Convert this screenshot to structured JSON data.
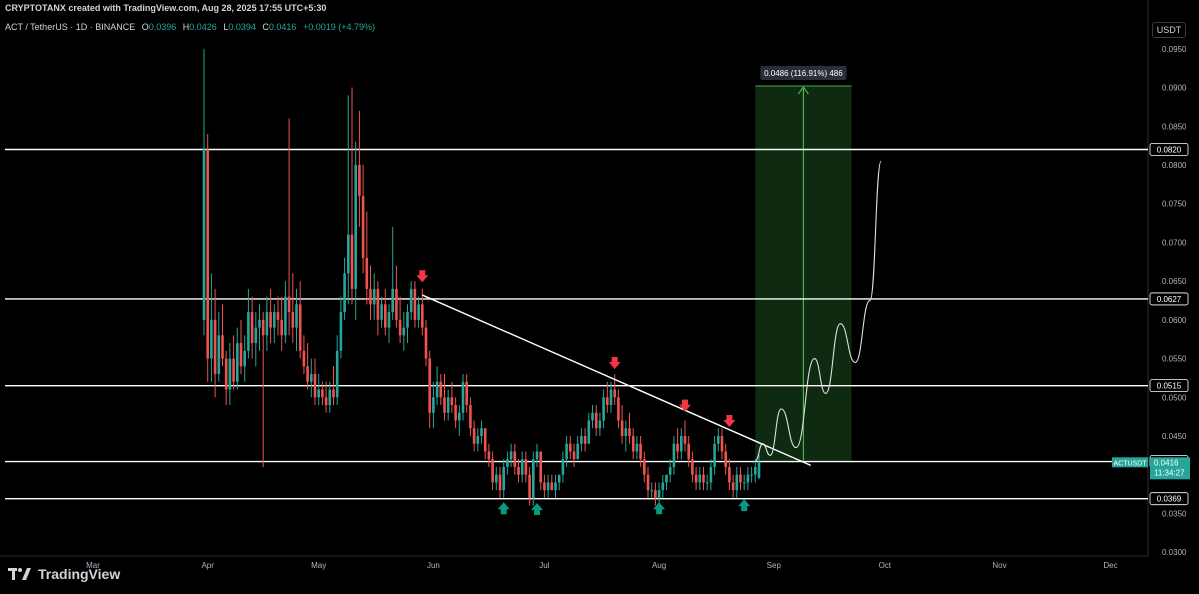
{
  "header": {
    "attribution": "CRYPTOTANX created with TradingView.com, Aug 28, 2025 17:55 UTC+5:30"
  },
  "legend": {
    "symbol": "ACT / TetherUS · 1D · BINANCE",
    "o_label": "O",
    "o_value": "0.0396",
    "h_label": "H",
    "h_value": "0.0426",
    "l_label": "L",
    "l_value": "0.0394",
    "c_label": "C",
    "c_value": "0.0416",
    "change": "+0.0019 (+4.79%)"
  },
  "unit_label": "USDT",
  "footer": {
    "brand": "TradingView",
    "logo_icon": "tradingview-logo-icon"
  },
  "colors": {
    "up": "#26a69a",
    "down": "#ef5350",
    "target_zone": "#0e2a10",
    "target_line": "#4caf50",
    "background": "#000000"
  },
  "chart_data": {
    "type": "candlestick",
    "symbol": "ACTUSDT",
    "y_scale": "linear",
    "ylim": [
      0.0295,
      0.0995
    ],
    "x_months": [
      "Mar",
      "Apr",
      "May",
      "Jun",
      "Jul",
      "Aug",
      "Sep",
      "Oct",
      "Nov",
      "Dec"
    ],
    "y_ticks": [
      "0.0950",
      "0.0900",
      "0.0850",
      "0.0800",
      "0.0750",
      "0.0700",
      "0.0650",
      "0.0600",
      "0.0550",
      "0.0500",
      "0.0450",
      "0.0400",
      "0.0350",
      "0.0300"
    ],
    "horizontal_levels": [
      {
        "value": 0.082,
        "label": "0.0820"
      },
      {
        "value": 0.0627,
        "label": "0.0627"
      },
      {
        "value": 0.0515,
        "label": "0.0515"
      },
      {
        "value": 0.0417,
        "label": "0.0417"
      },
      {
        "value": 0.0369,
        "label": "0.0369"
      }
    ],
    "last_price": {
      "symbol": "ACTUSDT",
      "value": "0.0416",
      "countdown": "11:34:27"
    },
    "trendline": {
      "from": [
        "2025-05-29",
        0.0632
      ],
      "to": [
        "2025-09-11",
        0.0412
      ]
    },
    "target": {
      "label": "0.0486 (116.91%) 486",
      "entry": 0.0417,
      "target": 0.0902,
      "from": "2025-08-27",
      "to": "2025-09-22"
    },
    "projection_path": [
      [
        "2025-08-27",
        0.0418
      ],
      [
        "2025-08-29",
        0.044
      ],
      [
        "2025-08-31",
        0.0425
      ],
      [
        "2025-09-03",
        0.0485
      ],
      [
        "2025-09-07",
        0.0435
      ],
      [
        "2025-09-12",
        0.055
      ],
      [
        "2025-09-15",
        0.0505
      ],
      [
        "2025-09-19",
        0.0595
      ],
      [
        "2025-09-23",
        0.0545
      ],
      [
        "2025-09-27",
        0.0625
      ],
      [
        "2025-09-30",
        0.0805
      ]
    ],
    "down_arrows": [
      [
        "2025-05-29",
        0.0655
      ],
      [
        "2025-07-20",
        0.0543
      ],
      [
        "2025-08-08",
        0.0488
      ],
      [
        "2025-08-20",
        0.0468
      ]
    ],
    "up_arrows": [
      [
        "2025-06-20",
        0.0358
      ],
      [
        "2025-06-29",
        0.0357
      ],
      [
        "2025-08-01",
        0.0358
      ],
      [
        "2025-08-24",
        0.0362
      ]
    ],
    "candles_ohlc": [
      [
        "2025-03-31",
        0.06,
        0.095,
        0.058,
        0.082
      ],
      [
        "2025-04-01",
        0.082,
        0.084,
        0.052,
        0.055
      ],
      [
        "2025-04-02",
        0.055,
        0.066,
        0.052,
        0.06
      ],
      [
        "2025-04-03",
        0.06,
        0.064,
        0.05,
        0.053
      ],
      [
        "2025-04-04",
        0.053,
        0.061,
        0.052,
        0.058
      ],
      [
        "2025-04-05",
        0.058,
        0.062,
        0.054,
        0.055
      ],
      [
        "2025-04-06",
        0.055,
        0.056,
        0.049,
        0.051
      ],
      [
        "2025-04-07",
        0.051,
        0.057,
        0.049,
        0.055
      ],
      [
        "2025-04-08",
        0.055,
        0.058,
        0.051,
        0.052
      ],
      [
        "2025-04-09",
        0.052,
        0.059,
        0.051,
        0.057
      ],
      [
        "2025-04-10",
        0.057,
        0.06,
        0.053,
        0.054
      ],
      [
        "2025-04-11",
        0.054,
        0.058,
        0.052,
        0.056
      ],
      [
        "2025-04-12",
        0.056,
        0.064,
        0.055,
        0.061
      ],
      [
        "2025-04-13",
        0.061,
        0.063,
        0.055,
        0.057
      ],
      [
        "2025-04-14",
        0.057,
        0.061,
        0.054,
        0.059
      ],
      [
        "2025-04-15",
        0.059,
        0.062,
        0.056,
        0.06
      ],
      [
        "2025-04-16",
        0.06,
        0.061,
        0.041,
        0.058
      ],
      [
        "2025-04-17",
        0.058,
        0.063,
        0.056,
        0.061
      ],
      [
        "2025-04-18",
        0.061,
        0.064,
        0.057,
        0.059
      ],
      [
        "2025-04-19",
        0.059,
        0.062,
        0.057,
        0.061
      ],
      [
        "2025-04-20",
        0.061,
        0.063,
        0.058,
        0.06
      ],
      [
        "2025-04-21",
        0.06,
        0.063,
        0.056,
        0.058
      ],
      [
        "2025-04-22",
        0.058,
        0.065,
        0.057,
        0.063
      ],
      [
        "2025-04-23",
        0.063,
        0.086,
        0.058,
        0.061
      ],
      [
        "2025-04-24",
        0.061,
        0.066,
        0.057,
        0.059
      ],
      [
        "2025-04-25",
        0.059,
        0.064,
        0.056,
        0.062
      ],
      [
        "2025-04-26",
        0.062,
        0.065,
        0.055,
        0.056
      ],
      [
        "2025-04-27",
        0.056,
        0.058,
        0.053,
        0.054
      ],
      [
        "2025-04-28",
        0.054,
        0.057,
        0.051,
        0.052
      ],
      [
        "2025-04-29",
        0.052,
        0.055,
        0.05,
        0.053
      ],
      [
        "2025-04-30",
        0.053,
        0.055,
        0.049,
        0.05
      ],
      [
        "2025-05-01",
        0.05,
        0.053,
        0.049,
        0.051
      ],
      [
        "2025-05-02",
        0.051,
        0.052,
        0.049,
        0.05
      ],
      [
        "2025-05-03",
        0.05,
        0.052,
        0.048,
        0.049
      ],
      [
        "2025-05-04",
        0.049,
        0.052,
        0.048,
        0.051
      ],
      [
        "2025-05-05",
        0.051,
        0.054,
        0.049,
        0.05
      ],
      [
        "2025-05-06",
        0.05,
        0.058,
        0.049,
        0.056
      ],
      [
        "2025-05-07",
        0.056,
        0.063,
        0.055,
        0.061
      ],
      [
        "2025-05-08",
        0.061,
        0.068,
        0.06,
        0.066
      ],
      [
        "2025-05-09",
        0.066,
        0.089,
        0.062,
        0.071
      ],
      [
        "2025-05-10",
        0.071,
        0.09,
        0.062,
        0.064
      ],
      [
        "2025-05-11",
        0.064,
        0.083,
        0.06,
        0.08
      ],
      [
        "2025-05-12",
        0.08,
        0.087,
        0.072,
        0.076
      ],
      [
        "2025-05-13",
        0.076,
        0.08,
        0.066,
        0.068
      ],
      [
        "2025-05-14",
        0.068,
        0.074,
        0.062,
        0.064
      ],
      [
        "2025-05-15",
        0.064,
        0.067,
        0.06,
        0.062
      ],
      [
        "2025-05-16",
        0.062,
        0.066,
        0.06,
        0.064
      ],
      [
        "2025-05-17",
        0.064,
        0.065,
        0.058,
        0.06
      ],
      [
        "2025-05-18",
        0.06,
        0.063,
        0.059,
        0.062
      ],
      [
        "2025-05-19",
        0.062,
        0.064,
        0.058,
        0.059
      ],
      [
        "2025-05-20",
        0.059,
        0.062,
        0.057,
        0.061
      ],
      [
        "2025-05-21",
        0.061,
        0.072,
        0.06,
        0.064
      ],
      [
        "2025-05-22",
        0.064,
        0.067,
        0.059,
        0.06
      ],
      [
        "2025-05-23",
        0.06,
        0.063,
        0.057,
        0.058
      ],
      [
        "2025-05-24",
        0.058,
        0.061,
        0.056,
        0.059
      ],
      [
        "2025-05-25",
        0.059,
        0.062,
        0.057,
        0.061
      ],
      [
        "2025-05-26",
        0.061,
        0.065,
        0.06,
        0.064
      ],
      [
        "2025-05-27",
        0.064,
        0.065,
        0.059,
        0.06
      ],
      [
        "2025-05-28",
        0.06,
        0.063,
        0.059,
        0.062
      ],
      [
        "2025-05-29",
        0.062,
        0.064,
        0.058,
        0.059
      ],
      [
        "2025-05-30",
        0.059,
        0.06,
        0.054,
        0.055
      ],
      [
        "2025-05-31",
        0.055,
        0.056,
        0.046,
        0.048
      ],
      [
        "2025-06-01",
        0.048,
        0.052,
        0.046,
        0.05
      ],
      [
        "2025-06-02",
        0.05,
        0.054,
        0.049,
        0.052
      ],
      [
        "2025-06-03",
        0.052,
        0.053,
        0.049,
        0.05
      ],
      [
        "2025-06-04",
        0.05,
        0.053,
        0.047,
        0.048
      ],
      [
        "2025-06-05",
        0.048,
        0.051,
        0.047,
        0.05
      ],
      [
        "2025-06-06",
        0.05,
        0.052,
        0.048,
        0.049
      ],
      [
        "2025-06-07",
        0.049,
        0.05,
        0.046,
        0.047
      ],
      [
        "2025-06-08",
        0.047,
        0.049,
        0.045,
        0.048
      ],
      [
        "2025-06-09",
        0.048,
        0.053,
        0.047,
        0.052
      ],
      [
        "2025-06-10",
        0.052,
        0.053,
        0.048,
        0.049
      ],
      [
        "2025-06-11",
        0.049,
        0.05,
        0.045,
        0.046
      ],
      [
        "2025-06-12",
        0.046,
        0.047,
        0.043,
        0.044
      ],
      [
        "2025-06-13",
        0.044,
        0.046,
        0.043,
        0.045
      ],
      [
        "2025-06-14",
        0.045,
        0.047,
        0.044,
        0.046
      ],
      [
        "2025-06-15",
        0.046,
        0.046,
        0.042,
        0.043
      ],
      [
        "2025-06-16",
        0.043,
        0.044,
        0.041,
        0.042
      ],
      [
        "2025-06-17",
        0.042,
        0.043,
        0.038,
        0.039
      ],
      [
        "2025-06-18",
        0.039,
        0.041,
        0.038,
        0.04
      ],
      [
        "2025-06-19",
        0.04,
        0.041,
        0.037,
        0.038
      ],
      [
        "2025-06-20",
        0.038,
        0.042,
        0.037,
        0.041
      ],
      [
        "2025-06-21",
        0.041,
        0.043,
        0.04,
        0.042
      ],
      [
        "2025-06-22",
        0.042,
        0.044,
        0.041,
        0.043
      ],
      [
        "2025-06-23",
        0.043,
        0.044,
        0.04,
        0.041
      ],
      [
        "2025-06-24",
        0.041,
        0.042,
        0.039,
        0.04
      ],
      [
        "2025-06-25",
        0.04,
        0.043,
        0.039,
        0.042
      ],
      [
        "2025-06-26",
        0.042,
        0.043,
        0.039,
        0.04
      ],
      [
        "2025-06-27",
        0.04,
        0.041,
        0.036,
        0.037
      ],
      [
        "2025-06-28",
        0.037,
        0.043,
        0.036,
        0.042
      ],
      [
        "2025-06-29",
        0.042,
        0.044,
        0.041,
        0.043
      ],
      [
        "2025-06-30",
        0.043,
        0.043,
        0.038,
        0.039
      ],
      [
        "2025-07-01",
        0.039,
        0.04,
        0.037,
        0.038
      ],
      [
        "2025-07-02",
        0.038,
        0.04,
        0.037,
        0.039
      ],
      [
        "2025-07-03",
        0.039,
        0.04,
        0.038,
        0.038
      ],
      [
        "2025-07-04",
        0.038,
        0.04,
        0.037,
        0.039
      ],
      [
        "2025-07-05",
        0.039,
        0.04,
        0.038,
        0.04
      ],
      [
        "2025-07-06",
        0.04,
        0.043,
        0.039,
        0.042
      ],
      [
        "2025-07-07",
        0.042,
        0.045,
        0.041,
        0.044
      ],
      [
        "2025-07-08",
        0.044,
        0.045,
        0.042,
        0.043
      ],
      [
        "2025-07-09",
        0.043,
        0.044,
        0.041,
        0.042
      ],
      [
        "2025-07-10",
        0.042,
        0.045,
        0.042,
        0.044
      ],
      [
        "2025-07-11",
        0.044,
        0.046,
        0.043,
        0.045
      ],
      [
        "2025-07-12",
        0.045,
        0.046,
        0.043,
        0.044
      ],
      [
        "2025-07-13",
        0.044,
        0.048,
        0.044,
        0.047
      ],
      [
        "2025-07-14",
        0.047,
        0.049,
        0.046,
        0.048
      ],
      [
        "2025-07-15",
        0.048,
        0.049,
        0.045,
        0.046
      ],
      [
        "2025-07-16",
        0.046,
        0.048,
        0.045,
        0.047
      ],
      [
        "2025-07-17",
        0.047,
        0.051,
        0.046,
        0.05
      ],
      [
        "2025-07-18",
        0.05,
        0.052,
        0.048,
        0.049
      ],
      [
        "2025-07-19",
        0.049,
        0.052,
        0.048,
        0.051
      ],
      [
        "2025-07-20",
        0.051,
        0.053,
        0.049,
        0.05
      ],
      [
        "2025-07-21",
        0.05,
        0.051,
        0.046,
        0.047
      ],
      [
        "2025-07-22",
        0.047,
        0.049,
        0.044,
        0.045
      ],
      [
        "2025-07-23",
        0.045,
        0.047,
        0.043,
        0.046
      ],
      [
        "2025-07-24",
        0.046,
        0.048,
        0.044,
        0.045
      ],
      [
        "2025-07-25",
        0.045,
        0.046,
        0.042,
        0.043
      ],
      [
        "2025-07-26",
        0.043,
        0.045,
        0.042,
        0.044
      ],
      [
        "2025-07-27",
        0.044,
        0.045,
        0.041,
        0.042
      ],
      [
        "2025-07-28",
        0.042,
        0.043,
        0.039,
        0.04
      ],
      [
        "2025-07-29",
        0.04,
        0.041,
        0.037,
        0.038
      ],
      [
        "2025-07-30",
        0.038,
        0.039,
        0.037,
        0.038
      ],
      [
        "2025-07-31",
        0.038,
        0.039,
        0.036,
        0.037
      ],
      [
        "2025-08-01",
        0.037,
        0.039,
        0.036,
        0.038
      ],
      [
        "2025-08-02",
        0.038,
        0.04,
        0.037,
        0.039
      ],
      [
        "2025-08-03",
        0.039,
        0.04,
        0.038,
        0.04
      ],
      [
        "2025-08-04",
        0.04,
        0.042,
        0.039,
        0.041
      ],
      [
        "2025-08-05",
        0.041,
        0.045,
        0.04,
        0.044
      ],
      [
        "2025-08-06",
        0.044,
        0.046,
        0.042,
        0.043
      ],
      [
        "2025-08-07",
        0.043,
        0.046,
        0.042,
        0.045
      ],
      [
        "2025-08-08",
        0.045,
        0.047,
        0.043,
        0.044
      ],
      [
        "2025-08-09",
        0.044,
        0.045,
        0.041,
        0.042
      ],
      [
        "2025-08-10",
        0.042,
        0.043,
        0.039,
        0.04
      ],
      [
        "2025-08-11",
        0.04,
        0.041,
        0.038,
        0.039
      ],
      [
        "2025-08-12",
        0.039,
        0.041,
        0.038,
        0.04
      ],
      [
        "2025-08-13",
        0.04,
        0.041,
        0.038,
        0.039
      ],
      [
        "2025-08-14",
        0.039,
        0.04,
        0.038,
        0.039
      ],
      [
        "2025-08-15",
        0.039,
        0.042,
        0.038,
        0.041
      ],
      [
        "2025-08-16",
        0.041,
        0.045,
        0.04,
        0.044
      ],
      [
        "2025-08-17",
        0.044,
        0.046,
        0.043,
        0.045
      ],
      [
        "2025-08-18",
        0.045,
        0.046,
        0.042,
        0.043
      ],
      [
        "2025-08-19",
        0.043,
        0.044,
        0.04,
        0.041
      ],
      [
        "2025-08-20",
        0.041,
        0.042,
        0.038,
        0.039
      ],
      [
        "2025-08-21",
        0.039,
        0.04,
        0.037,
        0.038
      ],
      [
        "2025-08-22",
        0.038,
        0.041,
        0.037,
        0.04
      ],
      [
        "2025-08-23",
        0.04,
        0.041,
        0.038,
        0.039
      ],
      [
        "2025-08-24",
        0.039,
        0.04,
        0.038,
        0.039
      ],
      [
        "2025-08-25",
        0.039,
        0.041,
        0.038,
        0.04
      ],
      [
        "2025-08-26",
        0.04,
        0.041,
        0.039,
        0.04
      ],
      [
        "2025-08-27",
        0.04,
        0.042,
        0.039,
        0.041
      ],
      [
        "2025-08-28",
        0.0396,
        0.0426,
        0.0394,
        0.0416
      ]
    ]
  }
}
